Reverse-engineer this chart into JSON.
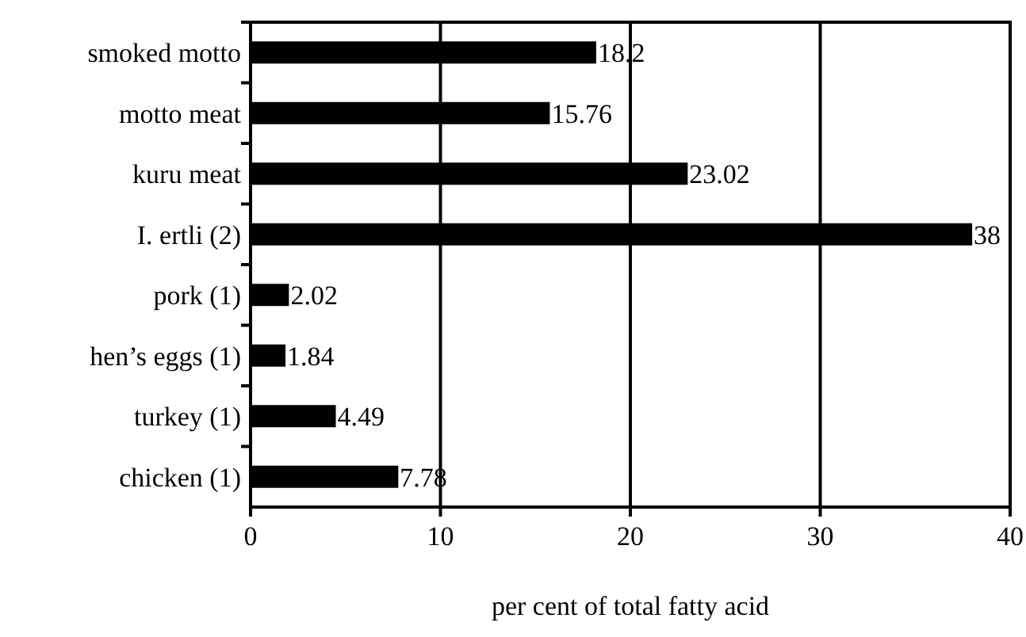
{
  "chart_data": {
    "type": "bar",
    "orientation": "horizontal",
    "xlabel": "per cent of total fatty acid",
    "categories": [
      "smoked motto",
      "motto meat",
      "kuru meat",
      "I. ertli (2)",
      "pork (1)",
      "hen’s eggs (1)",
      "turkey (1)",
      "chicken (1)"
    ],
    "values": [
      18.2,
      15.76,
      23.02,
      38,
      2.02,
      1.84,
      4.49,
      7.78
    ],
    "color": "#000000",
    "data_labels": true,
    "xlim": [
      0,
      40
    ],
    "xticks": [
      0,
      10,
      20,
      30,
      40
    ],
    "grid": "x"
  }
}
